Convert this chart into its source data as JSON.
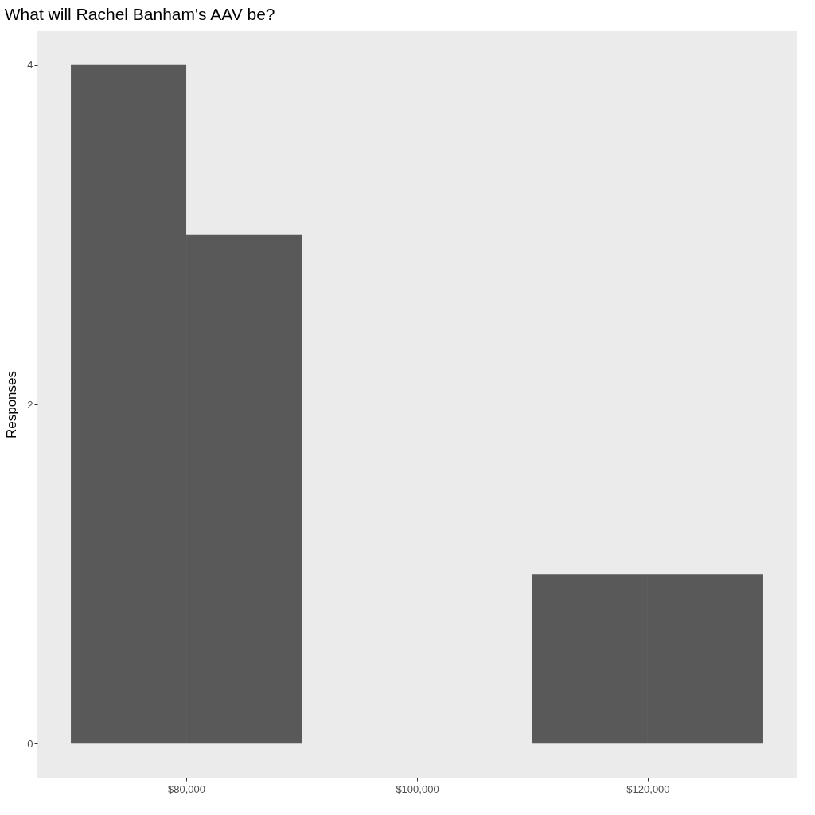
{
  "chart_data": {
    "type": "histogram",
    "title": "What will Rachel Banham's AAV be?",
    "ylabel": "Responses",
    "bins": [
      70000,
      80000,
      90000,
      100000,
      110000,
      120000,
      130000
    ],
    "values": [
      4,
      3,
      0,
      0,
      1,
      1
    ],
    "color": "#595959",
    "xlim": [
      67100,
      132900
    ],
    "ylim": [
      -0.2,
      4.2
    ],
    "xticks": [
      {
        "value": 80000,
        "label": "$80,000"
      },
      {
        "value": 100000,
        "label": "$100,000"
      },
      {
        "value": 120000,
        "label": "$120,000"
      }
    ],
    "yticks": [
      0,
      2,
      4
    ],
    "grid": false
  }
}
